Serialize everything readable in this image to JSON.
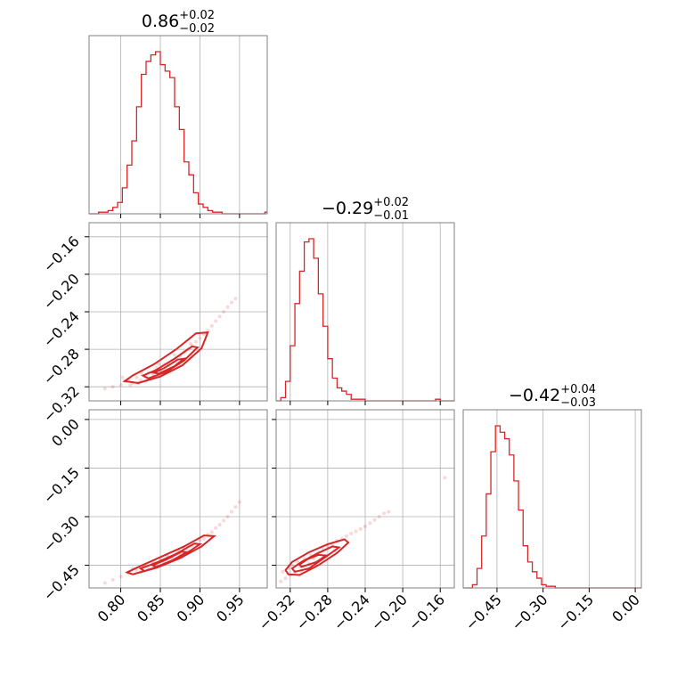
{
  "chart_data": {
    "type": "corner",
    "color": "#d62728",
    "parameters": [
      {
        "median": "0.86",
        "plus": "+0.02",
        "minus": "−0.02",
        "range": [
          0.76,
          0.985
        ],
        "ticks": [
          0.8,
          0.85,
          0.9,
          0.95
        ],
        "tick_labels": [
          "0.80",
          "0.85",
          "0.90",
          "0.95"
        ],
        "y_range": [
          -0.335,
          -0.145
        ],
        "y_ticks": [
          -0.16,
          -0.2,
          -0.24,
          -0.28,
          -0.32
        ],
        "y_tick_labels": [
          "−0.16",
          "−0.20",
          "−0.24",
          "−0.28",
          "−0.32"
        ],
        "hist": {
          "edges": [
            0.76,
            0.766,
            0.772,
            0.778,
            0.784,
            0.79,
            0.796,
            0.802,
            0.808,
            0.814,
            0.82,
            0.826,
            0.832,
            0.838,
            0.844,
            0.85,
            0.856,
            0.862,
            0.868,
            0.874,
            0.88,
            0.886,
            0.892,
            0.898,
            0.904,
            0.91,
            0.916,
            0.922,
            0.928,
            0.934,
            0.94,
            0.946,
            0.952,
            0.958,
            0.964,
            0.97,
            0.976,
            0.982,
            0.985
          ],
          "counts": [
            0,
            0,
            1,
            1,
            2,
            4,
            7,
            16,
            30,
            45,
            66,
            86,
            94,
            98,
            100,
            92,
            88,
            84,
            66,
            52,
            32,
            24,
            13,
            6,
            4,
            2,
            1,
            1,
            0,
            0,
            0,
            0,
            0,
            0,
            0,
            0,
            0,
            1
          ]
        }
      },
      {
        "median": "−0.29",
        "plus": "+0.02",
        "minus": "−0.01",
        "range": [
          -0.335,
          -0.145
        ],
        "ticks": [
          -0.32,
          -0.28,
          -0.24,
          -0.2,
          -0.16
        ],
        "tick_labels": [
          "−0.32",
          "−0.28",
          "−0.24",
          "−0.20",
          "−0.16"
        ],
        "y_range": [
          -0.52,
          0.03
        ],
        "y_ticks": [
          0.0,
          -0.15,
          -0.3,
          -0.45
        ],
        "y_tick_labels": [
          "0.00",
          "−0.15",
          "−0.30",
          "−0.45"
        ],
        "hist": {
          "edges": [
            -0.335,
            -0.33,
            -0.325,
            -0.32,
            -0.315,
            -0.31,
            -0.305,
            -0.3,
            -0.295,
            -0.29,
            -0.285,
            -0.28,
            -0.275,
            -0.27,
            -0.265,
            -0.26,
            -0.255,
            -0.25,
            -0.245,
            -0.24,
            -0.235,
            -0.23,
            -0.225,
            -0.22,
            -0.215,
            -0.21,
            -0.205,
            -0.2,
            -0.195,
            -0.19,
            -0.185,
            -0.18,
            -0.175,
            -0.17,
            -0.165,
            -0.16,
            -0.155,
            -0.15,
            -0.145
          ],
          "counts": [
            0,
            2,
            12,
            34,
            60,
            80,
            98,
            100,
            88,
            66,
            46,
            26,
            14,
            8,
            6,
            4,
            1,
            1,
            1,
            0,
            0,
            0,
            0,
            0,
            0,
            0,
            0,
            0,
            0,
            0,
            0,
            0,
            0,
            0,
            1,
            0,
            0,
            0
          ]
        }
      },
      {
        "median": "−0.42",
        "plus": "+0.04",
        "minus": "−0.03",
        "range": [
          -0.56,
          0.02
        ],
        "ticks": [
          -0.45,
          -0.3,
          -0.15,
          0.0
        ],
        "tick_labels": [
          "−0.45",
          "−0.30",
          "−0.15",
          "0.00"
        ],
        "hist": {
          "edges": [
            -0.56,
            -0.545,
            -0.53,
            -0.515,
            -0.5,
            -0.485,
            -0.47,
            -0.455,
            -0.44,
            -0.425,
            -0.41,
            -0.395,
            -0.38,
            -0.365,
            -0.35,
            -0.335,
            -0.32,
            -0.305,
            -0.29,
            -0.275,
            -0.26,
            -0.245,
            -0.23,
            -0.215,
            -0.2,
            -0.185,
            -0.17,
            -0.155,
            -0.14,
            -0.125,
            -0.11,
            -0.095,
            -0.08,
            -0.065,
            -0.05,
            -0.035,
            -0.02,
            -0.005,
            0.01,
            0.02
          ],
          "counts": [
            0,
            0,
            2,
            12,
            32,
            58,
            84,
            100,
            96,
            92,
            82,
            66,
            48,
            26,
            16,
            10,
            6,
            2,
            1,
            1,
            0,
            0,
            0,
            0,
            0,
            0,
            0,
            0,
            0,
            0,
            0,
            0,
            0,
            0,
            0,
            0,
            0,
            0,
            0
          ]
        }
      }
    ],
    "pairs": [
      {
        "x_param": 0,
        "y_param": 1,
        "points": [
          [
            0.78,
            -0.322
          ],
          [
            0.79,
            -0.32
          ],
          [
            0.8,
            -0.318
          ],
          [
            0.805,
            -0.314
          ],
          [
            0.81,
            -0.312
          ],
          [
            0.815,
            -0.316
          ],
          [
            0.82,
            -0.31
          ],
          [
            0.825,
            -0.313
          ],
          [
            0.83,
            -0.309
          ],
          [
            0.835,
            -0.305
          ],
          [
            0.84,
            -0.306
          ],
          [
            0.845,
            -0.3
          ],
          [
            0.85,
            -0.302
          ],
          [
            0.855,
            -0.296
          ],
          [
            0.86,
            -0.297
          ],
          [
            0.865,
            -0.292
          ],
          [
            0.87,
            -0.29
          ],
          [
            0.875,
            -0.287
          ],
          [
            0.88,
            -0.283
          ],
          [
            0.885,
            -0.28
          ],
          [
            0.89,
            -0.276
          ],
          [
            0.895,
            -0.272
          ],
          [
            0.9,
            -0.268
          ],
          [
            0.905,
            -0.264
          ],
          [
            0.91,
            -0.26
          ],
          [
            0.915,
            -0.255
          ],
          [
            0.92,
            -0.25
          ],
          [
            0.925,
            -0.245
          ],
          [
            0.93,
            -0.24
          ],
          [
            0.935,
            -0.235
          ],
          [
            0.94,
            -0.23
          ],
          [
            0.945,
            -0.226
          ],
          [
            0.812,
            -0.318
          ],
          [
            0.822,
            -0.316
          ],
          [
            0.832,
            -0.313
          ],
          [
            0.842,
            -0.309
          ],
          [
            0.852,
            -0.305
          ],
          [
            0.862,
            -0.301
          ],
          [
            0.872,
            -0.295
          ],
          [
            0.802,
            -0.31
          ],
          [
            0.826,
            -0.305
          ],
          [
            0.848,
            -0.296
          ],
          [
            0.868,
            -0.286
          ],
          [
            0.888,
            -0.274
          ]
        ],
        "contours": [
          [
            [
              0.822,
              -0.316
            ],
            [
              0.85,
              -0.309
            ],
            [
              0.878,
              -0.297
            ],
            [
              0.902,
              -0.279
            ],
            [
              0.91,
              -0.262
            ],
            [
              0.895,
              -0.263
            ],
            [
              0.87,
              -0.28
            ],
            [
              0.842,
              -0.296
            ],
            [
              0.815,
              -0.308
            ],
            [
              0.805,
              -0.314
            ],
            [
              0.822,
              -0.316
            ]
          ],
          [
            [
              0.835,
              -0.311
            ],
            [
              0.858,
              -0.304
            ],
            [
              0.88,
              -0.292
            ],
            [
              0.897,
              -0.278
            ],
            [
              0.89,
              -0.277
            ],
            [
              0.868,
              -0.29
            ],
            [
              0.845,
              -0.302
            ],
            [
              0.828,
              -0.308
            ],
            [
              0.835,
              -0.311
            ]
          ],
          [
            [
              0.848,
              -0.306
            ],
            [
              0.868,
              -0.298
            ],
            [
              0.88,
              -0.29
            ],
            [
              0.872,
              -0.291
            ],
            [
              0.855,
              -0.3
            ],
            [
              0.842,
              -0.305
            ],
            [
              0.848,
              -0.306
            ]
          ]
        ]
      },
      {
        "x_param": 0,
        "y_param": 2,
        "points": [
          [
            0.78,
            -0.505
          ],
          [
            0.79,
            -0.495
          ],
          [
            0.8,
            -0.485
          ],
          [
            0.81,
            -0.475
          ],
          [
            0.82,
            -0.465
          ],
          [
            0.825,
            -0.47
          ],
          [
            0.83,
            -0.455
          ],
          [
            0.835,
            -0.46
          ],
          [
            0.84,
            -0.445
          ],
          [
            0.845,
            -0.45
          ],
          [
            0.85,
            -0.435
          ],
          [
            0.855,
            -0.44
          ],
          [
            0.86,
            -0.425
          ],
          [
            0.865,
            -0.428
          ],
          [
            0.87,
            -0.415
          ],
          [
            0.875,
            -0.418
          ],
          [
            0.88,
            -0.4
          ],
          [
            0.885,
            -0.405
          ],
          [
            0.89,
            -0.39
          ],
          [
            0.895,
            -0.385
          ],
          [
            0.9,
            -0.372
          ],
          [
            0.905,
            -0.368
          ],
          [
            0.91,
            -0.355
          ],
          [
            0.915,
            -0.348
          ],
          [
            0.92,
            -0.335
          ],
          [
            0.925,
            -0.325
          ],
          [
            0.93,
            -0.312
          ],
          [
            0.935,
            -0.3
          ],
          [
            0.94,
            -0.285
          ],
          [
            0.945,
            -0.27
          ],
          [
            0.95,
            -0.255
          ],
          [
            0.815,
            -0.46
          ],
          [
            0.828,
            -0.45
          ],
          [
            0.842,
            -0.438
          ],
          [
            0.858,
            -0.42
          ],
          [
            0.872,
            -0.405
          ],
          [
            0.886,
            -0.39
          ]
        ],
        "contours": [
          [
            [
              0.815,
              -0.478
            ],
            [
              0.845,
              -0.458
            ],
            [
              0.875,
              -0.428
            ],
            [
              0.902,
              -0.392
            ],
            [
              0.918,
              -0.36
            ],
            [
              0.905,
              -0.358
            ],
            [
              0.88,
              -0.392
            ],
            [
              0.85,
              -0.425
            ],
            [
              0.82,
              -0.458
            ],
            [
              0.808,
              -0.472
            ],
            [
              0.815,
              -0.478
            ]
          ],
          [
            [
              0.83,
              -0.468
            ],
            [
              0.855,
              -0.448
            ],
            [
              0.88,
              -0.418
            ],
            [
              0.9,
              -0.385
            ],
            [
              0.893,
              -0.383
            ],
            [
              0.87,
              -0.415
            ],
            [
              0.845,
              -0.442
            ],
            [
              0.825,
              -0.46
            ],
            [
              0.83,
              -0.468
            ]
          ],
          [
            [
              0.845,
              -0.455
            ],
            [
              0.865,
              -0.435
            ],
            [
              0.883,
              -0.41
            ],
            [
              0.877,
              -0.408
            ],
            [
              0.858,
              -0.432
            ],
            [
              0.84,
              -0.45
            ],
            [
              0.845,
              -0.455
            ]
          ]
        ]
      },
      {
        "x_param": 1,
        "y_param": 2,
        "points": [
          [
            -0.33,
            -0.5
          ],
          [
            -0.328,
            -0.47
          ],
          [
            -0.325,
            -0.49
          ],
          [
            -0.322,
            -0.46
          ],
          [
            -0.32,
            -0.48
          ],
          [
            -0.318,
            -0.45
          ],
          [
            -0.315,
            -0.47
          ],
          [
            -0.312,
            -0.44
          ],
          [
            -0.31,
            -0.455
          ],
          [
            -0.305,
            -0.43
          ],
          [
            -0.3,
            -0.445
          ],
          [
            -0.298,
            -0.42
          ],
          [
            -0.295,
            -0.43
          ],
          [
            -0.29,
            -0.41
          ],
          [
            -0.285,
            -0.4
          ],
          [
            -0.28,
            -0.39
          ],
          [
            -0.275,
            -0.385
          ],
          [
            -0.27,
            -0.375
          ],
          [
            -0.265,
            -0.368
          ],
          [
            -0.26,
            -0.36
          ],
          [
            -0.255,
            -0.352
          ],
          [
            -0.25,
            -0.345
          ],
          [
            -0.245,
            -0.338
          ],
          [
            -0.24,
            -0.33
          ],
          [
            -0.235,
            -0.32
          ],
          [
            -0.23,
            -0.31
          ],
          [
            -0.225,
            -0.3
          ],
          [
            -0.22,
            -0.29
          ],
          [
            -0.215,
            -0.285
          ],
          [
            -0.155,
            -0.18
          ],
          [
            -0.308,
            -0.47
          ],
          [
            -0.302,
            -0.46
          ],
          [
            -0.292,
            -0.44
          ],
          [
            -0.282,
            -0.42
          ],
          [
            -0.272,
            -0.405
          ]
        ],
        "contours": [
          [
            [
              -0.322,
              -0.478
            ],
            [
              -0.31,
              -0.48
            ],
            [
              -0.29,
              -0.45
            ],
            [
              -0.27,
              -0.412
            ],
            [
              -0.258,
              -0.38
            ],
            [
              -0.262,
              -0.37
            ],
            [
              -0.28,
              -0.385
            ],
            [
              -0.3,
              -0.41
            ],
            [
              -0.318,
              -0.44
            ],
            [
              -0.325,
              -0.465
            ],
            [
              -0.322,
              -0.478
            ]
          ],
          [
            [
              -0.315,
              -0.47
            ],
            [
              -0.3,
              -0.46
            ],
            [
              -0.285,
              -0.43
            ],
            [
              -0.268,
              -0.395
            ],
            [
              -0.275,
              -0.392
            ],
            [
              -0.292,
              -0.415
            ],
            [
              -0.308,
              -0.44
            ],
            [
              -0.318,
              -0.46
            ],
            [
              -0.315,
              -0.47
            ]
          ],
          [
            [
              -0.308,
              -0.455
            ],
            [
              -0.292,
              -0.44
            ],
            [
              -0.282,
              -0.42
            ],
            [
              -0.29,
              -0.418
            ],
            [
              -0.302,
              -0.432
            ],
            [
              -0.31,
              -0.448
            ],
            [
              -0.308,
              -0.455
            ]
          ]
        ]
      }
    ]
  }
}
